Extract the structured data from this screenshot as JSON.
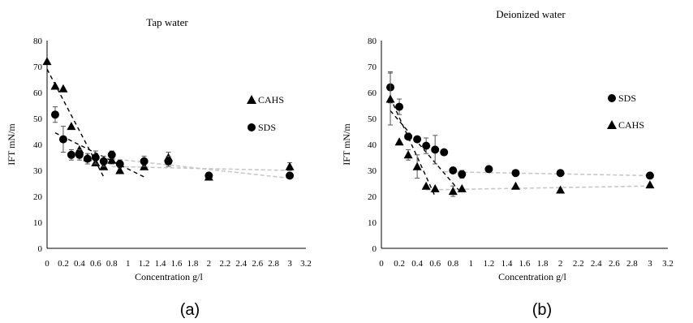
{
  "captions": [
    "(a)",
    "(b)"
  ],
  "chart_data": [
    {
      "type": "scatter",
      "title": "Tap water",
      "xlabel": "Concentration g/l",
      "ylabel": "IFT mN/m",
      "xlim": [
        0,
        3.2
      ],
      "ylim": [
        0,
        80
      ],
      "xticks": [
        "0",
        "0.2",
        "0.4",
        "0.6",
        "0.8",
        "1",
        "1.2",
        "1.4",
        "1.6",
        "1.8",
        "2",
        "2.2",
        "2.4",
        "2.6",
        "2.8",
        "3",
        "3.2"
      ],
      "yticks": [
        "0",
        "10",
        "20",
        "30",
        "40",
        "50",
        "60",
        "70",
        "80"
      ],
      "grid": false,
      "legend_placement": "right",
      "series": [
        {
          "name": "CAHS",
          "marker": "triangle",
          "x": [
            0,
            0.1,
            0.2,
            0.3,
            0.4,
            0.5,
            0.6,
            0.7,
            0.8,
            0.9,
            1.2,
            1.5,
            2.0,
            3.0
          ],
          "y": [
            72,
            62.5,
            61.5,
            47,
            38,
            35,
            33,
            31.5,
            34,
            30,
            31.5,
            35,
            27.5,
            31.5
          ],
          "err": [
            0,
            0,
            0,
            0,
            0,
            0,
            0,
            0,
            1.5,
            0,
            0,
            2,
            1,
            1.5
          ]
        },
        {
          "name": "SDS",
          "marker": "circle",
          "x": [
            0.1,
            0.2,
            0.3,
            0.4,
            0.5,
            0.6,
            0.7,
            0.8,
            0.9,
            1.2,
            1.5,
            2.0,
            3.0
          ],
          "y": [
            51.5,
            42,
            36,
            36,
            34.5,
            35,
            33.5,
            36,
            32.5,
            33.5,
            33.5,
            28,
            28
          ],
          "err": [
            3,
            5,
            2,
            2,
            2,
            2.5,
            2,
            1.5,
            1.5,
            2,
            2,
            1,
            1
          ]
        }
      ],
      "fits": [
        {
          "style": "black-dashed",
          "x": [
            0,
            0.7
          ],
          "y": [
            69,
            27.5
          ]
        },
        {
          "style": "black-dashed",
          "x": [
            0.1,
            1.2
          ],
          "y": [
            44.5,
            27.5
          ]
        },
        {
          "style": "grey-dashed",
          "x": [
            0.8,
            3.0
          ],
          "y": [
            31.5,
            30
          ]
        },
        {
          "style": "grey-dashed",
          "x": [
            0.8,
            3.0
          ],
          "y": [
            34.5,
            27
          ]
        }
      ]
    },
    {
      "type": "scatter",
      "title": "Deionized water",
      "xlabel": "Concentration g/l",
      "ylabel": "IFT mN/m",
      "xlim": [
        0,
        3.2
      ],
      "ylim": [
        0,
        80
      ],
      "xticks": [
        "0",
        "0.2",
        "0.4",
        "0.6",
        "0.8",
        "1",
        "1.2",
        "1.4",
        "1.6",
        "1.8",
        "2",
        "2.2",
        "2.4",
        "2.6",
        "2.8",
        "3",
        "3.2"
      ],
      "yticks": [
        "0",
        "10",
        "20",
        "30",
        "40",
        "50",
        "60",
        "70",
        "80"
      ],
      "grid": false,
      "legend_placement": "right",
      "series": [
        {
          "name": "SDS",
          "marker": "circle",
          "x": [
            0.1,
            0.2,
            0.3,
            0.4,
            0.5,
            0.6,
            0.7,
            0.8,
            0.9,
            1.2,
            1.5,
            2.0,
            3.0
          ],
          "y": [
            62,
            54.5,
            43,
            42,
            39.5,
            38,
            37,
            30,
            28.5,
            30.5,
            29,
            29,
            28
          ],
          "err": [
            6,
            3,
            0,
            0,
            3,
            5.5,
            0,
            1,
            1.5,
            0,
            0,
            0.5,
            0.5
          ]
        },
        {
          "name": "CAHS",
          "marker": "triangle",
          "x": [
            0.1,
            0.2,
            0.3,
            0.4,
            0.5,
            0.6,
            0.8,
            0.9,
            1.5,
            2.0,
            3.0
          ],
          "y": [
            57.5,
            41,
            36,
            31.5,
            24,
            23,
            22,
            23,
            24,
            22.5,
            24.5
          ],
          "err": [
            10,
            0,
            2,
            4.5,
            0,
            0,
            2,
            0,
            0,
            0,
            0
          ]
        }
      ],
      "fits": [
        {
          "style": "black-dashed",
          "x": [
            0.1,
            0.6
          ],
          "y": [
            58,
            20
          ]
        },
        {
          "style": "black-dashed",
          "x": [
            0.1,
            0.9
          ],
          "y": [
            53,
            21
          ]
        },
        {
          "style": "grey-dashed",
          "x": [
            0.7,
            3.0
          ],
          "y": [
            29.5,
            28
          ]
        },
        {
          "style": "grey-dashed",
          "x": [
            0.5,
            3.0
          ],
          "y": [
            22.5,
            24
          ]
        }
      ]
    }
  ]
}
